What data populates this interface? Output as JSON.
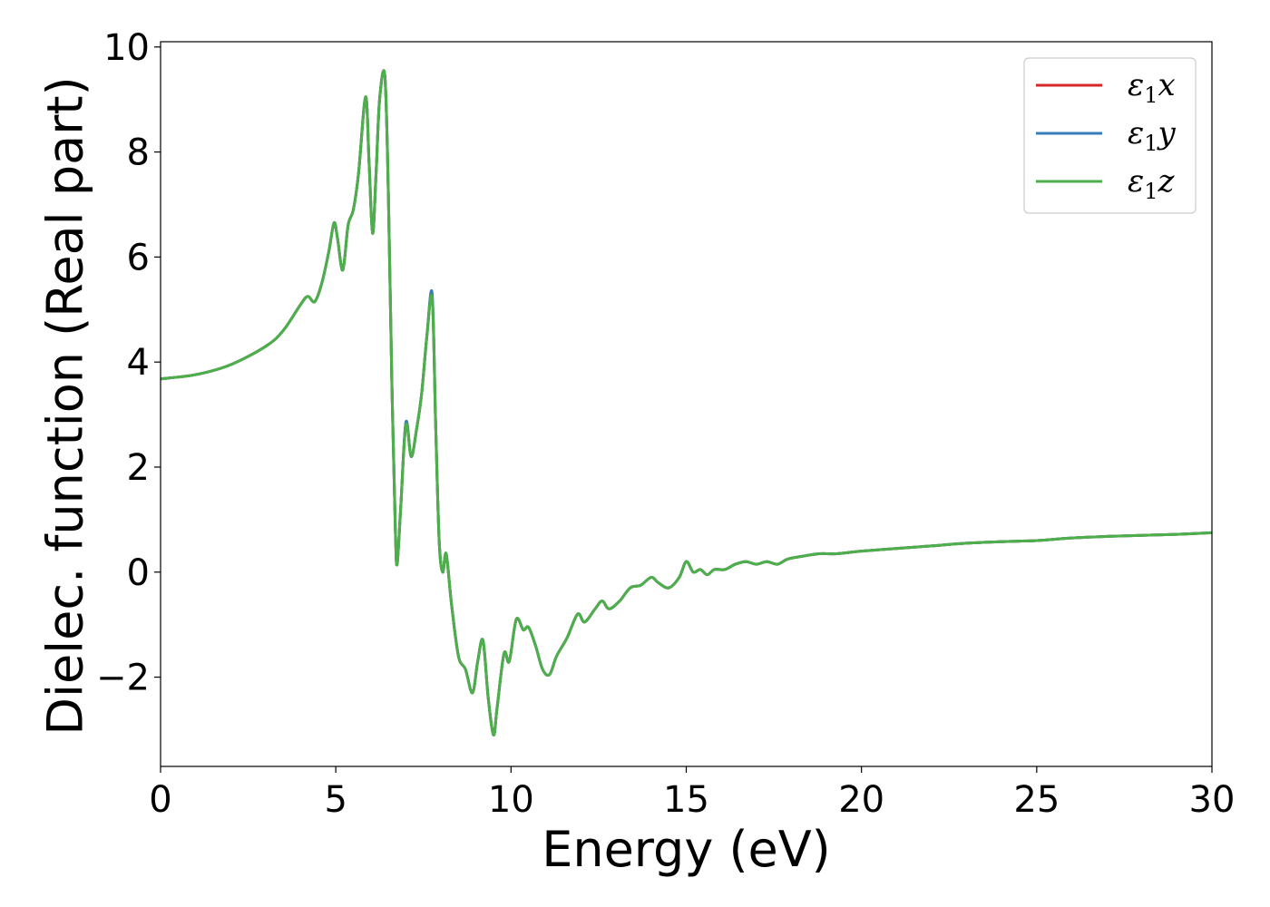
{
  "chart_data": {
    "type": "line",
    "xlabel": "Energy (eV)",
    "ylabel": "Dielec. function (Real part)",
    "xlim": [
      0,
      30
    ],
    "ylim": [
      -3.7,
      10.1
    ],
    "xticks": [
      0,
      5,
      10,
      15,
      20,
      25,
      30
    ],
    "xtick_labels": [
      "0",
      "5",
      "10",
      "15",
      "20",
      "25",
      "30"
    ],
    "yticks": [
      -2,
      0,
      2,
      4,
      6,
      8,
      10
    ],
    "ytick_labels": [
      "−2",
      "0",
      "2",
      "4",
      "6",
      "8",
      "10"
    ],
    "grid": false,
    "legend_position": "top-right",
    "series": [
      {
        "name": "ε1x",
        "color": "#d62728",
        "x": [
          0,
          1,
          2,
          3,
          3.5,
          4,
          4.2,
          4.4,
          4.6,
          4.8,
          4.95,
          5.05,
          5.2,
          5.35,
          5.5,
          5.65,
          5.85,
          5.95,
          6.05,
          6.15,
          6.25,
          6.4,
          6.5,
          6.6,
          6.7,
          6.75,
          6.85,
          7.0,
          7.15,
          7.3,
          7.45,
          7.6,
          7.75,
          7.85,
          7.95,
          8.05,
          8.15,
          8.3,
          8.5,
          8.7,
          8.9,
          9.05,
          9.2,
          9.35,
          9.5,
          9.6,
          9.8,
          9.95,
          10.15,
          10.35,
          10.5,
          10.7,
          10.9,
          11.1,
          11.3,
          11.6,
          11.9,
          12.1,
          12.4,
          12.6,
          12.8,
          13.1,
          13.4,
          13.7,
          14.0,
          14.2,
          14.5,
          14.8,
          15.0,
          15.2,
          15.4,
          15.6,
          15.8,
          16.1,
          16.4,
          16.7,
          17.0,
          17.3,
          17.6,
          17.9,
          18.3,
          18.8,
          19.3,
          20,
          21,
          22,
          23,
          24,
          25,
          26,
          27,
          28,
          29,
          30
        ],
        "y": [
          3.68,
          3.76,
          3.95,
          4.3,
          4.6,
          5.1,
          5.25,
          5.15,
          5.5,
          6.1,
          6.65,
          6.35,
          5.75,
          6.6,
          6.9,
          7.6,
          9.05,
          7.8,
          6.45,
          7.6,
          9.0,
          9.45,
          7.2,
          3.6,
          0.8,
          0.15,
          1.2,
          2.85,
          2.2,
          2.7,
          3.4,
          4.5,
          5.25,
          2.8,
          0.6,
          0.0,
          0.35,
          -0.6,
          -1.6,
          -1.85,
          -2.3,
          -1.7,
          -1.3,
          -2.4,
          -3.1,
          -2.6,
          -1.55,
          -1.7,
          -0.9,
          -1.1,
          -1.05,
          -1.4,
          -1.85,
          -1.95,
          -1.6,
          -1.25,
          -0.8,
          -0.95,
          -0.7,
          -0.55,
          -0.7,
          -0.55,
          -0.3,
          -0.25,
          -0.1,
          -0.2,
          -0.3,
          -0.1,
          0.2,
          0.0,
          0.05,
          -0.05,
          0.05,
          0.05,
          0.15,
          0.2,
          0.15,
          0.2,
          0.15,
          0.25,
          0.3,
          0.35,
          0.35,
          0.4,
          0.45,
          0.5,
          0.55,
          0.58,
          0.6,
          0.65,
          0.68,
          0.7,
          0.72,
          0.75
        ]
      },
      {
        "name": "ε1y",
        "color": "#377eb8",
        "x": [
          0,
          1,
          2,
          3,
          3.5,
          4,
          4.2,
          4.4,
          4.6,
          4.8,
          4.95,
          5.05,
          5.2,
          5.35,
          5.5,
          5.65,
          5.85,
          5.95,
          6.05,
          6.15,
          6.25,
          6.4,
          6.5,
          6.6,
          6.7,
          6.75,
          6.85,
          7.0,
          7.15,
          7.3,
          7.45,
          7.6,
          7.75,
          7.85,
          7.95,
          8.05,
          8.15,
          8.3,
          8.5,
          8.7,
          8.9,
          9.05,
          9.2,
          9.35,
          9.5,
          9.6,
          9.8,
          9.95,
          10.15,
          10.35,
          10.5,
          10.7,
          10.9,
          11.1,
          11.3,
          11.6,
          11.9,
          12.1,
          12.4,
          12.6,
          12.8,
          13.1,
          13.4,
          13.7,
          14.0,
          14.2,
          14.5,
          14.8,
          15.0,
          15.2,
          15.4,
          15.6,
          15.8,
          16.1,
          16.4,
          16.7,
          17.0,
          17.3,
          17.6,
          17.9,
          18.3,
          18.8,
          19.3,
          20,
          21,
          22,
          23,
          24,
          25,
          26,
          27,
          28,
          29,
          30
        ],
        "y": [
          3.68,
          3.76,
          3.95,
          4.3,
          4.6,
          5.1,
          5.25,
          5.15,
          5.5,
          6.1,
          6.65,
          6.35,
          5.75,
          6.6,
          6.9,
          7.6,
          9.05,
          7.8,
          6.45,
          7.6,
          9.0,
          9.45,
          7.2,
          3.6,
          0.8,
          0.15,
          1.2,
          2.85,
          2.2,
          2.7,
          3.4,
          4.5,
          5.3,
          2.8,
          0.6,
          0.0,
          0.35,
          -0.6,
          -1.6,
          -1.85,
          -2.3,
          -1.7,
          -1.3,
          -2.4,
          -3.1,
          -2.6,
          -1.55,
          -1.7,
          -0.9,
          -1.1,
          -1.05,
          -1.4,
          -1.85,
          -1.95,
          -1.6,
          -1.25,
          -0.8,
          -0.95,
          -0.7,
          -0.55,
          -0.7,
          -0.55,
          -0.3,
          -0.25,
          -0.1,
          -0.2,
          -0.3,
          -0.1,
          0.2,
          0.0,
          0.05,
          -0.05,
          0.05,
          0.05,
          0.15,
          0.2,
          0.15,
          0.2,
          0.15,
          0.25,
          0.3,
          0.35,
          0.35,
          0.4,
          0.45,
          0.5,
          0.55,
          0.58,
          0.6,
          0.65,
          0.68,
          0.7,
          0.72,
          0.75
        ]
      },
      {
        "name": "ε1z",
        "color": "#4daf4a",
        "x": [
          0,
          1,
          2,
          3,
          3.5,
          4,
          4.2,
          4.4,
          4.6,
          4.8,
          4.95,
          5.05,
          5.2,
          5.35,
          5.5,
          5.65,
          5.85,
          5.95,
          6.05,
          6.15,
          6.25,
          6.4,
          6.5,
          6.6,
          6.7,
          6.75,
          6.85,
          7.0,
          7.15,
          7.3,
          7.45,
          7.6,
          7.75,
          7.85,
          7.95,
          8.05,
          8.15,
          8.3,
          8.5,
          8.7,
          8.9,
          9.05,
          9.2,
          9.35,
          9.5,
          9.6,
          9.8,
          9.95,
          10.15,
          10.35,
          10.5,
          10.7,
          10.9,
          11.1,
          11.3,
          11.6,
          11.9,
          12.1,
          12.4,
          12.6,
          12.8,
          13.1,
          13.4,
          13.7,
          14.0,
          14.2,
          14.5,
          14.8,
          15.0,
          15.2,
          15.4,
          15.6,
          15.8,
          16.1,
          16.4,
          16.7,
          17.0,
          17.3,
          17.6,
          17.9,
          18.3,
          18.8,
          19.3,
          20,
          21,
          22,
          23,
          24,
          25,
          26,
          27,
          28,
          29,
          30
        ],
        "y": [
          3.68,
          3.76,
          3.95,
          4.3,
          4.6,
          5.1,
          5.25,
          5.15,
          5.5,
          6.1,
          6.65,
          6.35,
          5.75,
          6.6,
          6.9,
          7.6,
          9.05,
          7.8,
          6.45,
          7.6,
          9.0,
          9.45,
          7.2,
          3.6,
          0.8,
          0.15,
          1.2,
          2.8,
          2.2,
          2.7,
          3.4,
          4.5,
          5.2,
          2.8,
          0.6,
          0.0,
          0.35,
          -0.6,
          -1.6,
          -1.85,
          -2.3,
          -1.7,
          -1.3,
          -2.4,
          -3.1,
          -2.6,
          -1.55,
          -1.7,
          -0.9,
          -1.1,
          -1.05,
          -1.4,
          -1.85,
          -1.95,
          -1.6,
          -1.25,
          -0.8,
          -0.95,
          -0.7,
          -0.55,
          -0.7,
          -0.55,
          -0.3,
          -0.25,
          -0.1,
          -0.2,
          -0.3,
          -0.1,
          0.2,
          0.0,
          0.05,
          -0.05,
          0.05,
          0.05,
          0.15,
          0.2,
          0.15,
          0.2,
          0.15,
          0.25,
          0.3,
          0.35,
          0.35,
          0.4,
          0.45,
          0.5,
          0.55,
          0.58,
          0.6,
          0.65,
          0.68,
          0.7,
          0.72,
          0.75
        ]
      }
    ],
    "legend": [
      {
        "symbol": "ε",
        "sub": "1",
        "axis": "x"
      },
      {
        "symbol": "ε",
        "sub": "1",
        "axis": "y"
      },
      {
        "symbol": "ε",
        "sub": "1",
        "axis": "z"
      }
    ]
  }
}
